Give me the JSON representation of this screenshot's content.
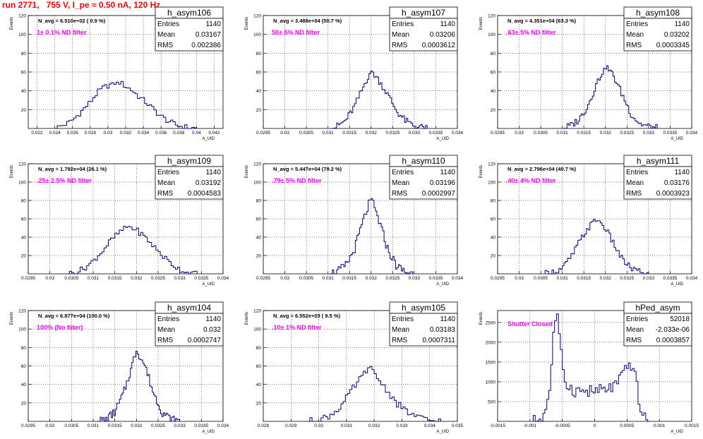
{
  "title": "run 2771,   755 V, I_pe ≈ 0.50 nA, 120 Hz",
  "chart_data": [
    {
      "type": "histogram",
      "name": "h_asym106",
      "annotation": "N_avg = 6.510e+02 ( 0.9 %)",
      "filter_label": "1± 0.1% ND filter",
      "stats": {
        "Entries": "1140",
        "Mean": "0.03167",
        "RMS": "0.002386"
      },
      "xlim": [
        0.021,
        0.043
      ],
      "ylim": [
        0,
        120
      ],
      "xticks": [
        0.022,
        0.024,
        0.026,
        0.028,
        0.03,
        0.032,
        0.034,
        0.036,
        0.038,
        0.04,
        0.042
      ],
      "xtick_labels": [
        "0.022",
        "0.024",
        "0.026",
        "0.028",
        "0.03",
        "0.032",
        "0.034",
        "0.036",
        "0.038",
        "0.04",
        "0.042"
      ],
      "yticks": [
        20,
        40,
        60,
        80,
        100,
        120
      ],
      "ylabel": "Events",
      "xlabel": "A_UID",
      "peak": 50,
      "hist_profile": [
        [
          0.024,
          0
        ],
        [
          0.0248,
          3
        ],
        [
          0.0256,
          6
        ],
        [
          0.0264,
          12
        ],
        [
          0.0272,
          20
        ],
        [
          0.028,
          28
        ],
        [
          0.0288,
          38
        ],
        [
          0.0296,
          44
        ],
        [
          0.0304,
          47
        ],
        [
          0.0312,
          50
        ],
        [
          0.032,
          45
        ],
        [
          0.0328,
          40
        ],
        [
          0.0336,
          33
        ],
        [
          0.0344,
          27
        ],
        [
          0.0352,
          20
        ],
        [
          0.036,
          13
        ],
        [
          0.0368,
          8
        ],
        [
          0.0376,
          4
        ],
        [
          0.0384,
          2
        ],
        [
          0.0392,
          1
        ],
        [
          0.04,
          0
        ]
      ]
    },
    {
      "type": "histogram",
      "name": "h_asym107",
      "annotation": "N_avg = 3.488e+04 (50.7 %)",
      "filter_label": "50± 5% ND filter",
      "stats": {
        "Entries": "1140",
        "Mean": "0.03206",
        "RMS": "0.0003612"
      },
      "xlim": [
        0.0295,
        0.034
      ],
      "ylim": [
        0,
        120
      ],
      "xticks": [
        0.0295,
        0.03,
        0.0305,
        0.031,
        0.0315,
        0.032,
        0.0325,
        0.033,
        0.0335,
        0.034
      ],
      "xtick_labels": [
        "0.0295",
        "0.03",
        "0.0305",
        "0.031",
        "0.0315",
        "0.032",
        "0.0325",
        "0.033",
        "0.0335",
        "0.034"
      ],
      "yticks": [
        20,
        40,
        60,
        80,
        100,
        120
      ],
      "ylabel": "Events",
      "xlabel": "A_UID",
      "peak": 62,
      "hist_profile": [
        [
          0.03105,
          0
        ],
        [
          0.0312,
          2
        ],
        [
          0.0314,
          8
        ],
        [
          0.0316,
          22
        ],
        [
          0.0318,
          42
        ],
        [
          0.032,
          62
        ],
        [
          0.0322,
          50
        ],
        [
          0.0324,
          35
        ],
        [
          0.0326,
          18
        ],
        [
          0.0328,
          8
        ],
        [
          0.033,
          3
        ],
        [
          0.0332,
          1
        ],
        [
          0.0333,
          0
        ]
      ]
    },
    {
      "type": "histogram",
      "name": "h_asym108",
      "annotation": "N_avg = 4.351e+04 (63.3 %)",
      "filter_label": ".63± 5% ND filter",
      "stats": {
        "Entries": "1140",
        "Mean": "0.03202",
        "RMS": "0.0003345"
      },
      "xlim": [
        0.0295,
        0.034
      ],
      "ylim": [
        0,
        120
      ],
      "xticks": [
        0.0295,
        0.03,
        0.0305,
        0.031,
        0.0315,
        0.032,
        0.0325,
        0.033,
        0.0335,
        0.034
      ],
      "xtick_labels": [
        "0.0295",
        "0.03",
        "0.0305",
        "0.031",
        "0.0315",
        "0.032",
        "0.0325",
        "0.033",
        "0.0335",
        "0.034"
      ],
      "yticks": [
        20,
        40,
        60,
        80,
        100,
        120
      ],
      "ylabel": "Events",
      "xlabel": "A_UID",
      "peak": 67,
      "hist_profile": [
        [
          0.031,
          0
        ],
        [
          0.0312,
          3
        ],
        [
          0.0314,
          10
        ],
        [
          0.0316,
          25
        ],
        [
          0.0318,
          48
        ],
        [
          0.032,
          67
        ],
        [
          0.0322,
          55
        ],
        [
          0.0324,
          35
        ],
        [
          0.0326,
          15
        ],
        [
          0.0328,
          5
        ],
        [
          0.033,
          2
        ],
        [
          0.0332,
          0
        ]
      ]
    },
    {
      "type": "histogram",
      "name": "h_asym109",
      "annotation": "N_avg = 1.792e+04 (26.1 %)",
      "filter_label": ".25± 2.5% ND filter",
      "stats": {
        "Entries": "1140",
        "Mean": "0.03192",
        "RMS": "0.0004583"
      },
      "xlim": [
        0.0295,
        0.034
      ],
      "ylim": [
        0,
        120
      ],
      "xticks": [
        0.0295,
        0.03,
        0.0305,
        0.031,
        0.0315,
        0.032,
        0.0325,
        0.033,
        0.0335,
        0.034
      ],
      "xtick_labels": [
        "0.0295",
        "0.03",
        "0.0305",
        "0.031",
        "0.0315",
        "0.032",
        "0.0325",
        "0.033",
        "0.0335",
        "0.034"
      ],
      "yticks": [
        20,
        40,
        60,
        80,
        100,
        120
      ],
      "ylabel": "Events",
      "xlabel": "A_UID",
      "peak": 52,
      "hist_profile": [
        [
          0.0304,
          0
        ],
        [
          0.0306,
          2
        ],
        [
          0.0308,
          6
        ],
        [
          0.031,
          14
        ],
        [
          0.0312,
          24
        ],
        [
          0.0314,
          36
        ],
        [
          0.0316,
          45
        ],
        [
          0.0318,
          52
        ],
        [
          0.032,
          48
        ],
        [
          0.0322,
          40
        ],
        [
          0.0324,
          30
        ],
        [
          0.0326,
          20
        ],
        [
          0.0328,
          11
        ],
        [
          0.033,
          5
        ],
        [
          0.0332,
          1
        ],
        [
          0.0334,
          0
        ]
      ]
    },
    {
      "type": "histogram",
      "name": "h_asym110",
      "annotation": "N_avg = 5.447e+04 (79.2 %)",
      "filter_label": ".79± 5% ND filter",
      "stats": {
        "Entries": "1140",
        "Mean": "0.03196",
        "RMS": "0.0002997"
      },
      "xlim": [
        0.0295,
        0.034
      ],
      "ylim": [
        0,
        120
      ],
      "xticks": [
        0.0295,
        0.03,
        0.0305,
        0.031,
        0.0315,
        0.032,
        0.0325,
        0.033,
        0.0335,
        0.034
      ],
      "xtick_labels": [
        "0.0295",
        "0.03",
        "0.0305",
        "0.031",
        "0.0315",
        "0.032",
        "0.0325",
        "0.033",
        "0.0335",
        "0.034"
      ],
      "yticks": [
        20,
        40,
        60,
        80,
        100,
        120
      ],
      "ylabel": "Events",
      "xlabel": "A_UID",
      "peak": 83,
      "hist_profile": [
        [
          0.031,
          0
        ],
        [
          0.0312,
          2
        ],
        [
          0.0314,
          8
        ],
        [
          0.0316,
          25
        ],
        [
          0.0318,
          55
        ],
        [
          0.032,
          83
        ],
        [
          0.0322,
          55
        ],
        [
          0.0324,
          25
        ],
        [
          0.0326,
          8
        ],
        [
          0.0328,
          2
        ],
        [
          0.033,
          0
        ]
      ]
    },
    {
      "type": "histogram",
      "name": "h_asym111",
      "annotation": "N_avg = 2.796e+04 (40.7 %)",
      "filter_label": ".40± 4% ND filter",
      "stats": {
        "Entries": "1140",
        "Mean": "0.03176",
        "RMS": "0.0003923"
      },
      "xlim": [
        0.0295,
        0.034
      ],
      "ylim": [
        0,
        120
      ],
      "xticks": [
        0.0295,
        0.03,
        0.0305,
        0.031,
        0.0315,
        0.032,
        0.0325,
        0.033,
        0.0335,
        0.034
      ],
      "xtick_labels": [
        "0.0295",
        "0.03",
        "0.0305",
        "0.031",
        "0.0315",
        "0.032",
        "0.0325",
        "0.033",
        "0.0335",
        "0.034"
      ],
      "yticks": [
        20,
        40,
        60,
        80,
        100,
        120
      ],
      "ylabel": "Events",
      "xlabel": "A_UID",
      "peak": 60,
      "hist_profile": [
        [
          0.0306,
          0
        ],
        [
          0.0308,
          2
        ],
        [
          0.031,
          6
        ],
        [
          0.0312,
          18
        ],
        [
          0.0314,
          35
        ],
        [
          0.0316,
          50
        ],
        [
          0.0318,
          60
        ],
        [
          0.032,
          50
        ],
        [
          0.0322,
          32
        ],
        [
          0.0324,
          15
        ],
        [
          0.0326,
          6
        ],
        [
          0.0328,
          2
        ],
        [
          0.033,
          0
        ]
      ]
    },
    {
      "type": "histogram",
      "name": "h_asym104",
      "annotation": "N_avg = 6.877e+04 (100.0 %)",
      "filter_label": "100% (No filter)",
      "stats": {
        "Entries": "1140",
        "Mean": "0.032",
        "RMS": "0.0002747"
      },
      "xlim": [
        0.0295,
        0.034
      ],
      "ylim": [
        0,
        120
      ],
      "xticks": [
        0.0295,
        0.03,
        0.0305,
        0.031,
        0.0315,
        0.032,
        0.0325,
        0.033,
        0.0335,
        0.034
      ],
      "xtick_labels": [
        "0.0295",
        "0.03",
        "0.0305",
        "0.031",
        "0.0315",
        "0.032",
        "0.0325",
        "0.033",
        "0.0335",
        "0.034"
      ],
      "yticks": [
        20,
        40,
        60,
        80,
        100,
        120
      ],
      "ylabel": "Events",
      "xlabel": "A_UID",
      "peak": 78,
      "hist_profile": [
        [
          0.0311,
          0
        ],
        [
          0.0313,
          2
        ],
        [
          0.0315,
          10
        ],
        [
          0.0317,
          30
        ],
        [
          0.0319,
          60
        ],
        [
          0.032,
          78
        ],
        [
          0.0322,
          60
        ],
        [
          0.0324,
          30
        ],
        [
          0.0326,
          10
        ],
        [
          0.0328,
          2
        ],
        [
          0.033,
          0
        ]
      ]
    },
    {
      "type": "histogram",
      "name": "h_asym105",
      "annotation": "N_avg = 6.552e+03 ( 9.5 %)",
      "filter_label": ".10± 1% ND filter",
      "stats": {
        "Entries": "1140",
        "Mean": "0.03183",
        "RMS": "0.0007311"
      },
      "xlim": [
        0.028,
        0.035
      ],
      "ylim": [
        0,
        120
      ],
      "xticks": [
        0.028,
        0.029,
        0.03,
        0.031,
        0.032,
        0.033,
        0.034,
        0.035
      ],
      "xtick_labels": [
        "0.028",
        "0.029",
        "0.03",
        "0.031",
        "0.032",
        "0.033",
        "0.034",
        "0.035"
      ],
      "yticks": [
        20,
        40,
        60,
        80,
        100,
        120
      ],
      "ylabel": "Events",
      "xlabel": "A_UID",
      "peak": 60,
      "hist_profile": [
        [
          0.0296,
          0
        ],
        [
          0.03,
          2
        ],
        [
          0.0304,
          6
        ],
        [
          0.0308,
          16
        ],
        [
          0.0312,
          34
        ],
        [
          0.0316,
          50
        ],
        [
          0.0318,
          60
        ],
        [
          0.032,
          52
        ],
        [
          0.0324,
          36
        ],
        [
          0.0328,
          20
        ],
        [
          0.0332,
          10
        ],
        [
          0.0336,
          4
        ],
        [
          0.034,
          1
        ],
        [
          0.0344,
          0
        ]
      ]
    },
    {
      "type": "histogram",
      "name": "hPed_asym",
      "annotation": "",
      "filter_label": "Shutter Closed",
      "stats": {
        "Entries": "52018",
        "Mean": "-2.033e-06",
        "RMS": "0.0003857"
      },
      "xlim": [
        -0.0015,
        0.0015
      ],
      "ylim": [
        0,
        2800
      ],
      "xticks": [
        -0.0015,
        -0.001,
        -0.0005,
        0,
        0.0005,
        0.001,
        0.0015
      ],
      "xtick_labels": [
        "-0.0015",
        "-0.001",
        "-0.0005",
        "0",
        "0.0005",
        "0.001",
        "0.0015"
      ],
      "yticks": [
        500,
        1000,
        1500,
        2000,
        2500
      ],
      "ylabel": "Events",
      "xlabel": "A_UID",
      "peak": 2800,
      "hist_profile": [
        [
          -0.00095,
          0
        ],
        [
          -0.0008,
          80
        ],
        [
          -0.0007,
          700
        ],
        [
          -0.00062,
          2500
        ],
        [
          -0.00058,
          2800
        ],
        [
          -0.00053,
          1800
        ],
        [
          -0.00045,
          1000
        ],
        [
          -0.00035,
          800
        ],
        [
          -0.0002,
          760
        ],
        [
          0.0,
          760
        ],
        [
          0.0002,
          800
        ],
        [
          0.00035,
          950
        ],
        [
          0.00045,
          1200
        ],
        [
          0.00055,
          1450
        ],
        [
          0.0006,
          1400
        ],
        [
          0.00066,
          800
        ],
        [
          0.00072,
          250
        ],
        [
          0.00078,
          40
        ],
        [
          0.00085,
          0
        ]
      ]
    }
  ]
}
